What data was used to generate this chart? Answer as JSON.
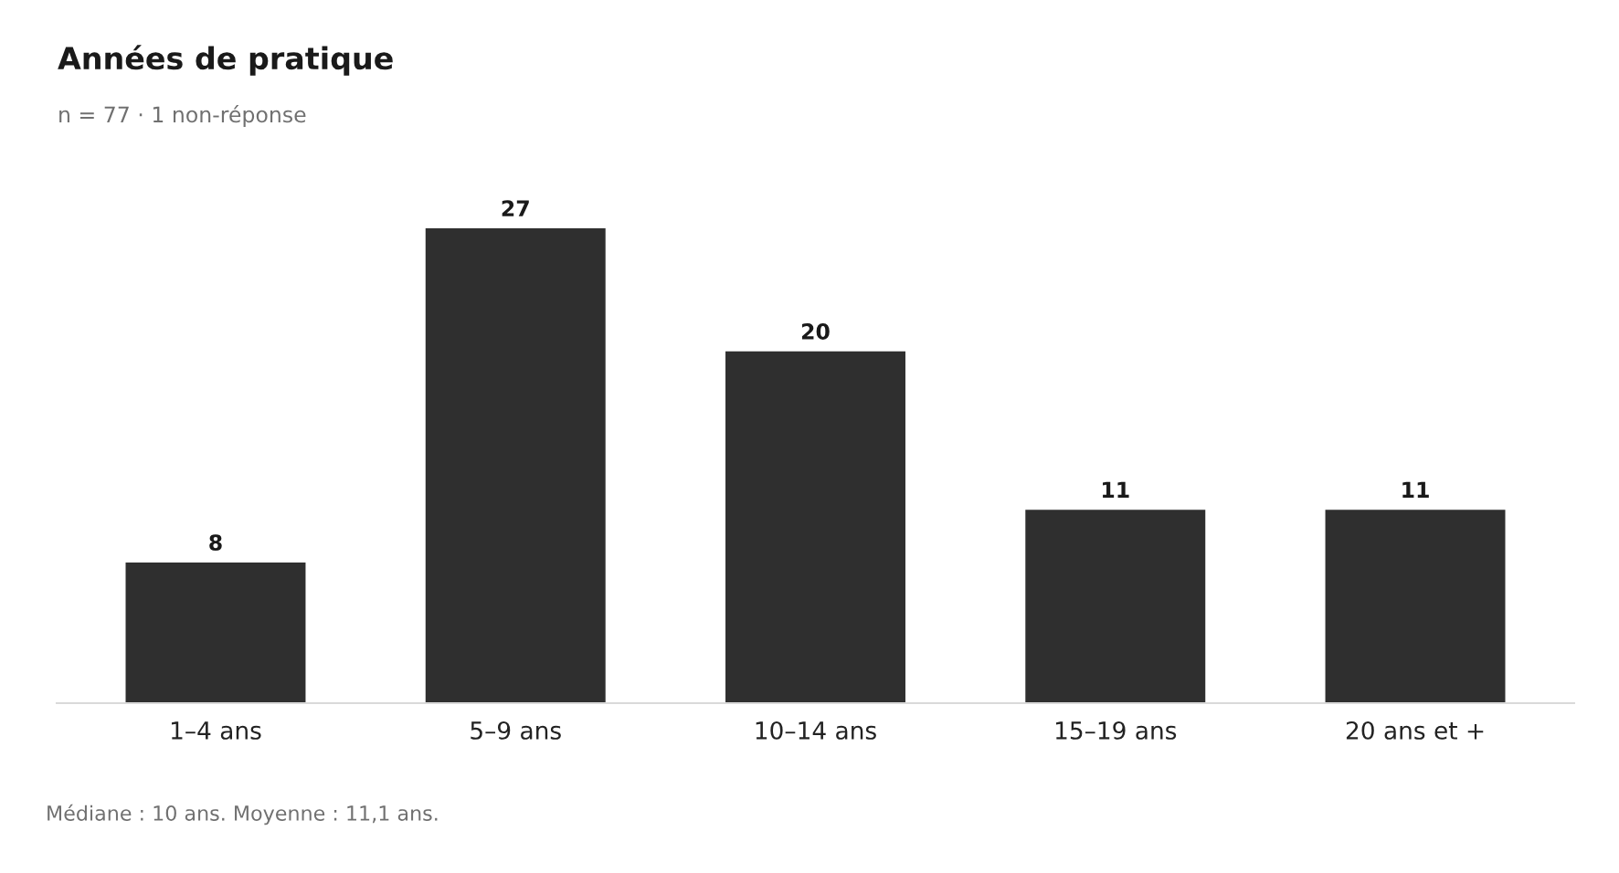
{
  "chart_data": {
    "type": "bar",
    "title": "Années de pratique",
    "subtitle": "n = 77 · 1 non-réponse",
    "categories": [
      "1–4 ans",
      "5–9 ans",
      "10–14 ans",
      "15–19 ans",
      "20 ans et +"
    ],
    "values": [
      8,
      27,
      20,
      11,
      11
    ],
    "color": "#2f2f2f",
    "data_labels": true,
    "grid": false,
    "legend": false,
    "annotations": [
      "Médiane : 10 ans. Moyenne : 11,1 ans."
    ]
  }
}
